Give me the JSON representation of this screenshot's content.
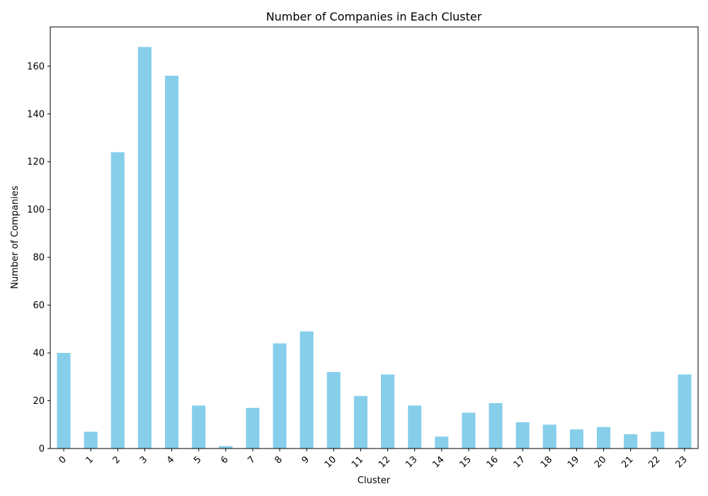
{
  "chart_data": {
    "type": "bar",
    "title": "Number of Companies in Each Cluster",
    "xlabel": "Cluster",
    "ylabel": "Number of Companies",
    "categories": [
      "0",
      "1",
      "2",
      "3",
      "4",
      "5",
      "6",
      "7",
      "8",
      "9",
      "10",
      "11",
      "12",
      "13",
      "14",
      "15",
      "16",
      "17",
      "18",
      "19",
      "20",
      "21",
      "22",
      "23"
    ],
    "values": [
      40,
      7,
      124,
      168,
      156,
      18,
      1,
      17,
      44,
      49,
      32,
      22,
      31,
      18,
      5,
      15,
      19,
      11,
      10,
      8,
      9,
      6,
      7,
      31
    ],
    "ylim": [
      0,
      176.4
    ],
    "yticks": [
      0,
      20,
      40,
      60,
      80,
      100,
      120,
      140,
      160
    ],
    "ytick_labels": [
      "0",
      "20",
      "40",
      "60",
      "80",
      "100",
      "120",
      "140",
      "160"
    ],
    "xtick_rotation_deg": 45,
    "grid": false,
    "bar_color": "#87ceeb"
  }
}
